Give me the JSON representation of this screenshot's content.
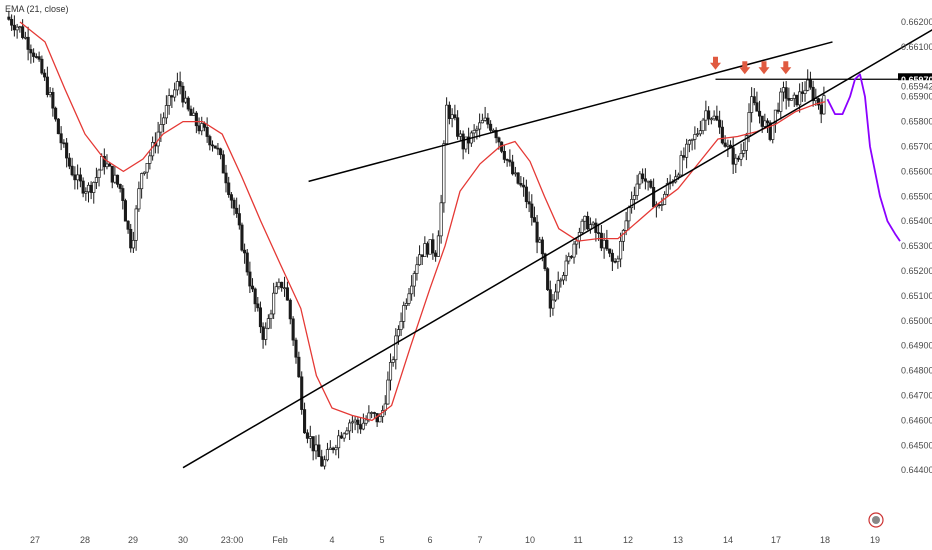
{
  "chart_data": {
    "type": "candlestick",
    "indicator_label": "EMA (21, close)",
    "colors": {
      "background": "#ffffff",
      "candle": "#1a1a1a",
      "ema": "#e53935",
      "trendline": "#000000",
      "projection": "#8b00ff",
      "arrow": "#e05a40",
      "price_tag_bg": "#000000",
      "price_tag_text": "#ffffff"
    },
    "y_axis": {
      "ticks": [
        "0.66200",
        "0.66100",
        "0.66000",
        "0.65900",
        "0.65800",
        "0.65700",
        "0.65600",
        "0.65500",
        "0.65400",
        "0.65300",
        "0.65200",
        "0.65100",
        "0.65000",
        "0.64900",
        "0.64800",
        "0.64700",
        "0.64600",
        "0.64500",
        "0.64400"
      ],
      "range": [
        0.6438,
        0.6625
      ]
    },
    "x_axis": {
      "ticks": [
        "27",
        "28",
        "29",
        "30",
        "23:00",
        "Feb",
        "4",
        "5",
        "6",
        "7",
        "10",
        "11",
        "12",
        "13",
        "14",
        "17",
        "18",
        "19"
      ]
    },
    "price_tags": [
      {
        "value": "0.65970",
        "style": "filled"
      },
      {
        "value": "0.65942",
        "style": "plain"
      }
    ],
    "horizontal_level": 0.6597,
    "trendlines": [
      {
        "from": [
          5.55,
          0.6556
        ],
        "to": [
          16.15,
          0.6612
        ]
      },
      {
        "from": [
          3.0,
          0.6441
        ],
        "to": [
          18.5,
          0.6621
        ]
      }
    ],
    "price_path": [
      [
        -0.55,
        0.6622
      ],
      [
        -0.3,
        0.6618
      ],
      [
        0,
        0.6608
      ],
      [
        0.3,
        0.6592
      ],
      [
        0.5,
        0.6575
      ],
      [
        0.7,
        0.6563
      ],
      [
        0.9,
        0.6555
      ],
      [
        1.1,
        0.6553
      ],
      [
        1.25,
        0.6557
      ],
      [
        1.4,
        0.6565
      ],
      [
        1.6,
        0.6558
      ],
      [
        1.8,
        0.6552
      ],
      [
        1.9,
        0.6538
      ],
      [
        2.0,
        0.653
      ],
      [
        2.2,
        0.656
      ],
      [
        2.4,
        0.6568
      ],
      [
        2.6,
        0.658
      ],
      [
        2.8,
        0.659
      ],
      [
        2.95,
        0.6596
      ],
      [
        3.1,
        0.6585
      ],
      [
        3.3,
        0.6579
      ],
      [
        3.5,
        0.6575
      ],
      [
        3.7,
        0.657
      ],
      [
        3.9,
        0.6558
      ],
      [
        4.1,
        0.6543
      ],
      [
        4.3,
        0.6525
      ],
      [
        4.5,
        0.6507
      ],
      [
        4.7,
        0.6493
      ],
      [
        4.9,
        0.651
      ],
      [
        5.1,
        0.6516
      ],
      [
        5.25,
        0.6498
      ],
      [
        5.4,
        0.6475
      ],
      [
        5.5,
        0.6458
      ],
      [
        5.7,
        0.6448
      ],
      [
        5.85,
        0.6442
      ],
      [
        6.0,
        0.6448
      ],
      [
        6.2,
        0.6455
      ],
      [
        6.4,
        0.646
      ],
      [
        6.6,
        0.6458
      ],
      [
        6.8,
        0.6462
      ],
      [
        7.0,
        0.646
      ],
      [
        7.2,
        0.648
      ],
      [
        7.4,
        0.65
      ],
      [
        7.6,
        0.6514
      ],
      [
        7.8,
        0.6527
      ],
      [
        8.0,
        0.653
      ],
      [
        8.15,
        0.6528
      ],
      [
        8.25,
        0.6547
      ],
      [
        8.35,
        0.6586
      ],
      [
        8.5,
        0.658
      ],
      [
        8.7,
        0.657
      ],
      [
        8.9,
        0.6575
      ],
      [
        9.1,
        0.658
      ],
      [
        9.3,
        0.6578
      ],
      [
        9.5,
        0.6568
      ],
      [
        9.7,
        0.6558
      ],
      [
        9.9,
        0.6552
      ],
      [
        10.1,
        0.654
      ],
      [
        10.3,
        0.6524
      ],
      [
        10.45,
        0.6503
      ],
      [
        10.6,
        0.6518
      ],
      [
        10.8,
        0.6522
      ],
      [
        11.0,
        0.6535
      ],
      [
        11.2,
        0.654
      ],
      [
        11.4,
        0.6535
      ],
      [
        11.6,
        0.6528
      ],
      [
        11.75,
        0.6522
      ],
      [
        11.9,
        0.6532
      ],
      [
        12.1,
        0.655
      ],
      [
        12.3,
        0.656
      ],
      [
        12.5,
        0.655
      ],
      [
        12.65,
        0.6545
      ],
      [
        12.8,
        0.6553
      ],
      [
        13.0,
        0.656
      ],
      [
        13.2,
        0.6568
      ],
      [
        13.4,
        0.6575
      ],
      [
        13.6,
        0.6585
      ],
      [
        13.8,
        0.658
      ],
      [
        14.0,
        0.657
      ],
      [
        14.2,
        0.6563
      ],
      [
        14.35,
        0.657
      ],
      [
        14.5,
        0.6588
      ],
      [
        14.7,
        0.6582
      ],
      [
        14.9,
        0.6575
      ],
      [
        15.05,
        0.6586
      ],
      [
        15.2,
        0.6592
      ],
      [
        15.35,
        0.6587
      ],
      [
        15.5,
        0.659
      ],
      [
        15.65,
        0.6595
      ],
      [
        15.8,
        0.659
      ],
      [
        15.95,
        0.6586
      ],
      [
        16.0,
        0.6588
      ]
    ],
    "ema_path": [
      [
        -0.3,
        0.662
      ],
      [
        0.2,
        0.6612
      ],
      [
        0.6,
        0.6593
      ],
      [
        1.0,
        0.6575
      ],
      [
        1.4,
        0.6565
      ],
      [
        1.8,
        0.656
      ],
      [
        2.2,
        0.6565
      ],
      [
        2.6,
        0.6575
      ],
      [
        3.0,
        0.658
      ],
      [
        3.4,
        0.658
      ],
      [
        3.8,
        0.6575
      ],
      [
        4.2,
        0.6558
      ],
      [
        4.6,
        0.654
      ],
      [
        5.0,
        0.6523
      ],
      [
        5.4,
        0.6505
      ],
      [
        5.7,
        0.6478
      ],
      [
        6.0,
        0.6465
      ],
      [
        6.4,
        0.6462
      ],
      [
        6.8,
        0.646
      ],
      [
        7.2,
        0.6466
      ],
      [
        7.6,
        0.649
      ],
      [
        8.0,
        0.6513
      ],
      [
        8.3,
        0.653
      ],
      [
        8.6,
        0.6552
      ],
      [
        9.0,
        0.6563
      ],
      [
        9.4,
        0.657
      ],
      [
        9.7,
        0.6572
      ],
      [
        10.0,
        0.6564
      ],
      [
        10.3,
        0.655
      ],
      [
        10.6,
        0.6537
      ],
      [
        11.0,
        0.6532
      ],
      [
        11.4,
        0.6533
      ],
      [
        11.8,
        0.6533
      ],
      [
        12.2,
        0.654
      ],
      [
        12.6,
        0.6547
      ],
      [
        13.0,
        0.6553
      ],
      [
        13.4,
        0.6563
      ],
      [
        13.8,
        0.6573
      ],
      [
        14.2,
        0.6574
      ],
      [
        14.6,
        0.6576
      ],
      [
        15.0,
        0.6579
      ],
      [
        15.4,
        0.6584
      ],
      [
        15.8,
        0.6587
      ],
      [
        16.0,
        0.6588
      ]
    ],
    "projection_path": [
      [
        16.05,
        0.6589
      ],
      [
        16.2,
        0.6583
      ],
      [
        16.35,
        0.6583
      ],
      [
        16.5,
        0.659
      ],
      [
        16.6,
        0.6597
      ],
      [
        16.7,
        0.6599
      ],
      [
        16.8,
        0.659
      ],
      [
        16.9,
        0.657
      ],
      [
        17.0,
        0.656
      ],
      [
        17.1,
        0.655
      ],
      [
        17.25,
        0.654
      ],
      [
        17.4,
        0.6535
      ],
      [
        17.5,
        0.6532
      ]
    ],
    "arrows": [
      {
        "x": 13.75,
        "value": 0.66008
      },
      {
        "x": 14.35,
        "value": 0.6599
      },
      {
        "x": 14.75,
        "value": 0.6599
      },
      {
        "x": 15.2,
        "value": 0.6599
      }
    ]
  }
}
